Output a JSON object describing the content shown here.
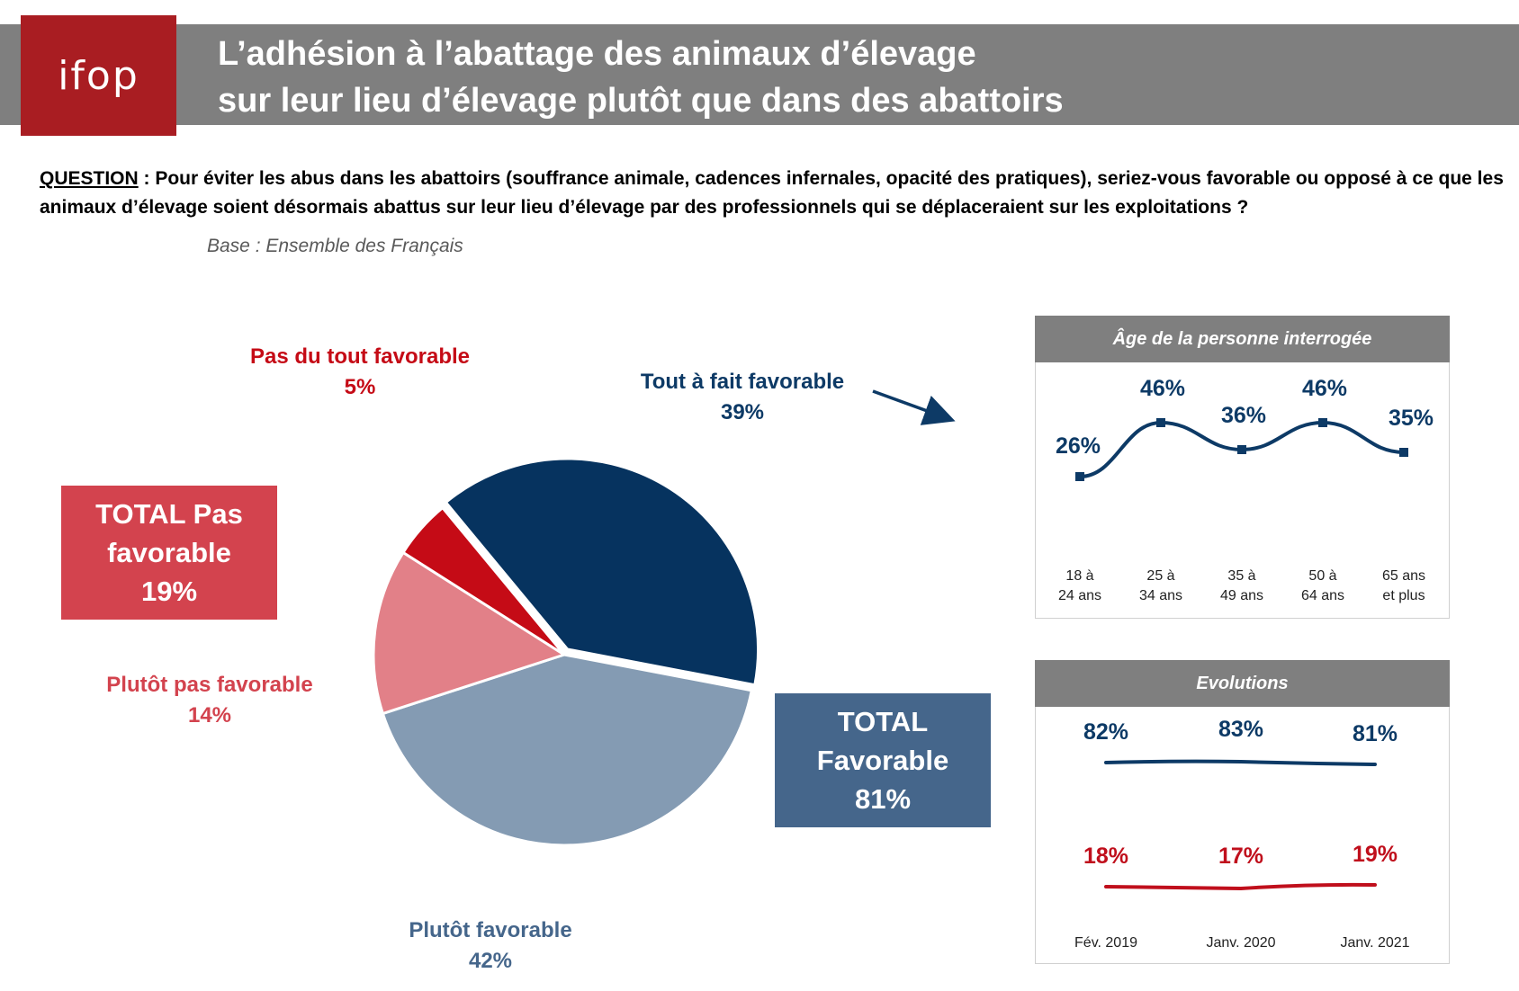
{
  "header": {
    "logo_text": "ifop",
    "title_line1": "L’adhésion à l’abattage des animaux d’élevage",
    "title_line2": "sur leur lieu d’élevage plutôt que dans des abattoirs"
  },
  "question": {
    "label": "QUESTION",
    "text": " : Pour éviter les abus dans les abattoirs (souffrance animale, cadences infernales, opacité des pratiques), seriez-vous favorable ou opposé à ce que les animaux d’élevage soient désormais abattus sur leur lieu d’élevage par des professionnels qui se déplaceraient sur les exploitations ?",
    "base": "Base : Ensemble des Français"
  },
  "colors": {
    "tout_a_fait": "#06335f",
    "plutot_fav": "#849bb3",
    "plutot_pas": "#e28088",
    "pas_du_tout": "#c50b16",
    "total_pas_box": "#d3434e",
    "total_fav_box": "#45668b",
    "navy_line": "#0d3a66",
    "red_line": "#c00f1c"
  },
  "chart_data": [
    {
      "type": "pie",
      "title": "",
      "slices": [
        {
          "label": "Tout à fait favorable",
          "value": 39
        },
        {
          "label": "Plutôt favorable",
          "value": 42
        },
        {
          "label": "Plutôt pas favorable",
          "value": 14
        },
        {
          "label": "Pas du tout favorable",
          "value": 5
        }
      ],
      "value_labels": [
        "39%",
        "42%",
        "14%",
        "5%"
      ],
      "totals": {
        "pas_favorable": {
          "line1": "TOTAL Pas",
          "line2": "favorable",
          "value": "19%"
        },
        "favorable": {
          "line1": "TOTAL",
          "line2": "Favorable",
          "value": "81%"
        }
      }
    },
    {
      "type": "line",
      "title": "Âge de la personne interrogée",
      "categories": [
        {
          "line1": "18 à",
          "line2": "24 ans"
        },
        {
          "line1": "25 à",
          "line2": "34 ans"
        },
        {
          "line1": "35 à",
          "line2": "49 ans"
        },
        {
          "line1": "50 à",
          "line2": "64 ans"
        },
        {
          "line1": "65 ans",
          "line2": "et plus"
        }
      ],
      "values": [
        26,
        46,
        36,
        46,
        35
      ],
      "value_labels": [
        "26%",
        "46%",
        "36%",
        "46%",
        "35%"
      ]
    },
    {
      "type": "line",
      "title": "Evolutions",
      "categories": [
        "Fév. 2019",
        "Janv. 2020",
        "Janv. 2021"
      ],
      "series": [
        {
          "values": [
            82,
            83,
            81
          ],
          "value_labels": [
            "82%",
            "83%",
            "81%"
          ]
        },
        {
          "values": [
            18,
            17,
            19
          ],
          "value_labels": [
            "18%",
            "17%",
            "19%"
          ]
        }
      ]
    }
  ]
}
